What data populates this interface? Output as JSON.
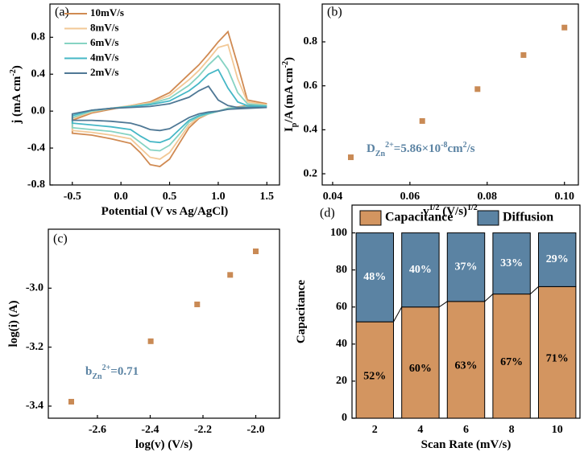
{
  "chart_data": [
    {
      "type": "line",
      "panel_label": "(a)",
      "x_label": [
        "Potential (V vs Ag/AgCl)"
      ],
      "y_label": [
        "j (mA cm",
        "-2",
        ")"
      ],
      "x": [
        -0.5,
        -0.3,
        -0.1,
        0.1,
        0.3,
        0.5,
        0.7,
        0.8,
        0.9,
        1.0,
        1.1,
        1.2,
        1.3,
        1.5,
        1.3,
        1.1,
        1.0,
        0.9,
        0.8,
        0.7,
        0.6,
        0.5,
        0.4,
        0.3,
        0.2,
        0.1,
        -0.1,
        -0.3,
        -0.5
      ],
      "series": [
        {
          "name": "10mV/s",
          "color": "#d08a52",
          "values": [
            -0.1,
            -0.02,
            0.02,
            0.06,
            0.1,
            0.2,
            0.4,
            0.5,
            0.62,
            0.75,
            0.86,
            0.5,
            0.12,
            0.08,
            0.06,
            0.03,
            0.0,
            -0.03,
            -0.08,
            -0.18,
            -0.35,
            -0.52,
            -0.6,
            -0.58,
            -0.45,
            -0.35,
            -0.3,
            -0.26,
            -0.24
          ]
        },
        {
          "name": "8mV/s",
          "color": "#f2c896",
          "values": [
            -0.08,
            -0.01,
            0.03,
            0.06,
            0.09,
            0.17,
            0.34,
            0.44,
            0.56,
            0.69,
            0.72,
            0.35,
            0.1,
            0.07,
            0.05,
            0.03,
            0.0,
            -0.03,
            -0.07,
            -0.15,
            -0.3,
            -0.45,
            -0.52,
            -0.5,
            -0.4,
            -0.3,
            -0.26,
            -0.23,
            -0.21
          ]
        },
        {
          "name": "6mV/s",
          "color": "#86d3c3",
          "values": [
            -0.07,
            0,
            0.03,
            0.05,
            0.08,
            0.14,
            0.28,
            0.38,
            0.5,
            0.6,
            0.45,
            0.2,
            0.08,
            0.06,
            0.05,
            0.03,
            0,
            -0.03,
            -0.06,
            -0.12,
            -0.25,
            -0.37,
            -0.43,
            -0.42,
            -0.34,
            -0.26,
            -0.22,
            -0.2,
            -0.18
          ]
        },
        {
          "name": "4mV/s",
          "color": "#45b7c6",
          "values": [
            -0.05,
            0.01,
            0.03,
            0.05,
            0.07,
            0.11,
            0.22,
            0.3,
            0.4,
            0.45,
            0.25,
            0.1,
            0.06,
            0.05,
            0.04,
            0.02,
            0,
            -0.02,
            -0.05,
            -0.1,
            -0.2,
            -0.3,
            -0.34,
            -0.33,
            -0.27,
            -0.2,
            -0.17,
            -0.15,
            -0.13
          ]
        },
        {
          "name": "2mV/s",
          "color": "#4f7895",
          "values": [
            -0.03,
            0.01,
            0.03,
            0.04,
            0.05,
            0.08,
            0.15,
            0.22,
            0.27,
            0.12,
            0.06,
            0.04,
            0.04,
            0.04,
            0.03,
            0.02,
            0,
            -0.01,
            -0.03,
            -0.07,
            -0.13,
            -0.19,
            -0.21,
            -0.2,
            -0.16,
            -0.13,
            -0.11,
            -0.1,
            -0.1
          ]
        }
      ],
      "xlim": [
        -0.73,
        1.63
      ],
      "ylim": [
        -0.8,
        1.16
      ],
      "xticks": [
        -0.5,
        {
          "value": 0,
          "label": "0.0"
        },
        0.5,
        {
          "value": 1,
          "label": "1.0"
        },
        1.5
      ],
      "yticks": [
        -0.8,
        -0.4,
        {
          "value": 0,
          "label": "0.0"
        },
        0.4,
        0.8
      ],
      "legend": "upper left"
    },
    {
      "type": "scatter",
      "panel_label": "(b)",
      "x_label": [
        "v",
        "1/2",
        " (V/s)",
        "1/2"
      ],
      "y_label": [
        "I",
        "p",
        "/A (mA cm",
        "-2",
        ")"
      ],
      "annotation": [
        "D",
        "Zn",
        "2+",
        "=5.86×10",
        "-8",
        "cm",
        "2",
        "/s"
      ],
      "x": [
        0.0447,
        0.0632,
        0.0775,
        0.0894,
        0.1
      ],
      "values": [
        0.275,
        0.44,
        0.585,
        0.74,
        0.865
      ],
      "color": "#c98a55",
      "xlim": [
        0.0373,
        0.1036
      ],
      "ylim": [
        0.149,
        0.972
      ],
      "xticks": [
        0.04,
        0.06,
        0.08,
        {
          "value": 0.1,
          "label": "0.10"
        }
      ],
      "yticks": [
        0.2,
        0.4,
        0.6,
        0.8
      ]
    },
    {
      "type": "scatter",
      "panel_label": "(c)",
      "x_label": [
        "log(v) (V/s)"
      ],
      "y_label": [
        "log(i) (A)"
      ],
      "annotation": [
        "b",
        "Zn",
        "2+",
        "=0.71"
      ],
      "x": [
        -2.699,
        -2.398,
        -2.222,
        -2.097,
        -2.0
      ],
      "values": [
        -3.385,
        -3.18,
        -3.055,
        -2.955,
        -2.875
      ],
      "color": "#c98a55",
      "xlim": [
        -2.786,
        -1.91
      ],
      "ylim": [
        -3.441,
        -2.8
      ],
      "xticks": [
        -2.6,
        -2.4,
        -2.2,
        {
          "value": -2,
          "label": "-2.0"
        }
      ],
      "yticks": [
        -3.4,
        -3.2,
        {
          "value": -3,
          "label": "-3.0"
        }
      ]
    },
    {
      "type": "bar",
      "stacked": true,
      "panel_label": "(d)",
      "x_label": [
        "Scan Rate (mV/s)"
      ],
      "y_label": [
        "Capacitance"
      ],
      "categories": [
        "2",
        "4",
        "6",
        "8",
        "10"
      ],
      "series": [
        {
          "name": "Capacitance",
          "color": "#d39560",
          "values": [
            52,
            60,
            63,
            67,
            71
          ],
          "value_labels": [
            "52%",
            "60%",
            "63%",
            "67%",
            "71%"
          ]
        },
        {
          "name": "Diffusion",
          "color": "#5b83a3",
          "values": [
            48,
            40,
            37,
            33,
            29
          ],
          "value_labels": [
            "48%",
            "40%",
            "37%",
            "33%",
            "29%"
          ]
        }
      ],
      "ylim": [
        0,
        115
      ],
      "yticks": [
        0,
        20,
        40,
        60,
        80,
        100
      ],
      "legend": "top"
    }
  ]
}
